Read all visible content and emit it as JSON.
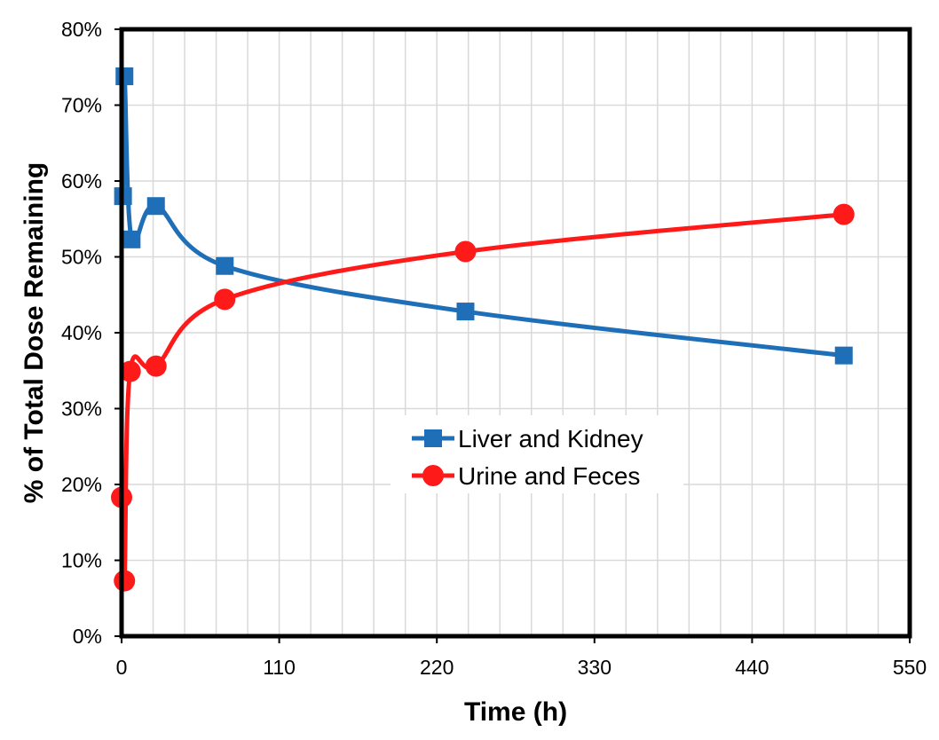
{
  "chart_data": {
    "type": "line",
    "xlabel": "Time (h)",
    "ylabel": "% of Total Dose Remaining",
    "xlim": [
      0,
      550
    ],
    "ylim": [
      0,
      80
    ],
    "x_ticks": [
      0,
      110,
      220,
      330,
      440,
      550
    ],
    "y_ticks": [
      0,
      10,
      20,
      30,
      40,
      50,
      60,
      70,
      80
    ],
    "y_tick_suffix": "%",
    "grid": true,
    "legend_position": "center-right",
    "series": [
      {
        "name": "Liver and Kidney",
        "color": "#1f6fb8",
        "marker": "square",
        "x": [
          1,
          2,
          7,
          24,
          72,
          240,
          504
        ],
        "y": [
          58,
          73.8,
          52.3,
          56.7,
          48.8,
          42.8,
          37
        ]
      },
      {
        "name": "Urine and Feces",
        "color": "#ff1a1a",
        "marker": "circle",
        "x": [
          0,
          2,
          6,
          24,
          72,
          240,
          504
        ],
        "y": [
          18.3,
          7.3,
          34.9,
          35.6,
          44.4,
          50.7,
          55.6
        ]
      }
    ]
  }
}
